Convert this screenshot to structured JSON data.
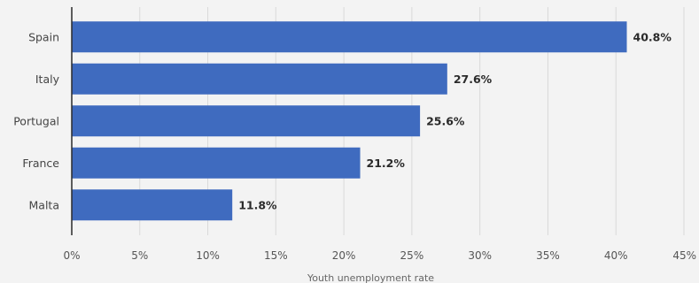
{
  "chart_data": {
    "type": "bar",
    "orientation": "horizontal",
    "categories": [
      "Spain",
      "Italy",
      "Portugal",
      "France",
      "Malta"
    ],
    "values": [
      40.8,
      27.6,
      25.6,
      21.2,
      11.8
    ],
    "value_labels": [
      "40.8%",
      "27.6%",
      "25.6%",
      "21.2%",
      "11.8%"
    ],
    "xlabel": "Youth unemployment rate",
    "ylabel": "",
    "xlim": [
      0,
      45
    ],
    "x_ticks": [
      0,
      5,
      10,
      15,
      20,
      25,
      30,
      35,
      40,
      45
    ],
    "x_tick_labels": [
      "0%",
      "5%",
      "10%",
      "15%",
      "20%",
      "25%",
      "30%",
      "35%",
      "40%",
      "45%"
    ],
    "grid": true,
    "legend": "none",
    "colors": {
      "bar": "#3f6bbf",
      "background": "#f3f3f3",
      "grid": "#d9d9d9"
    }
  }
}
